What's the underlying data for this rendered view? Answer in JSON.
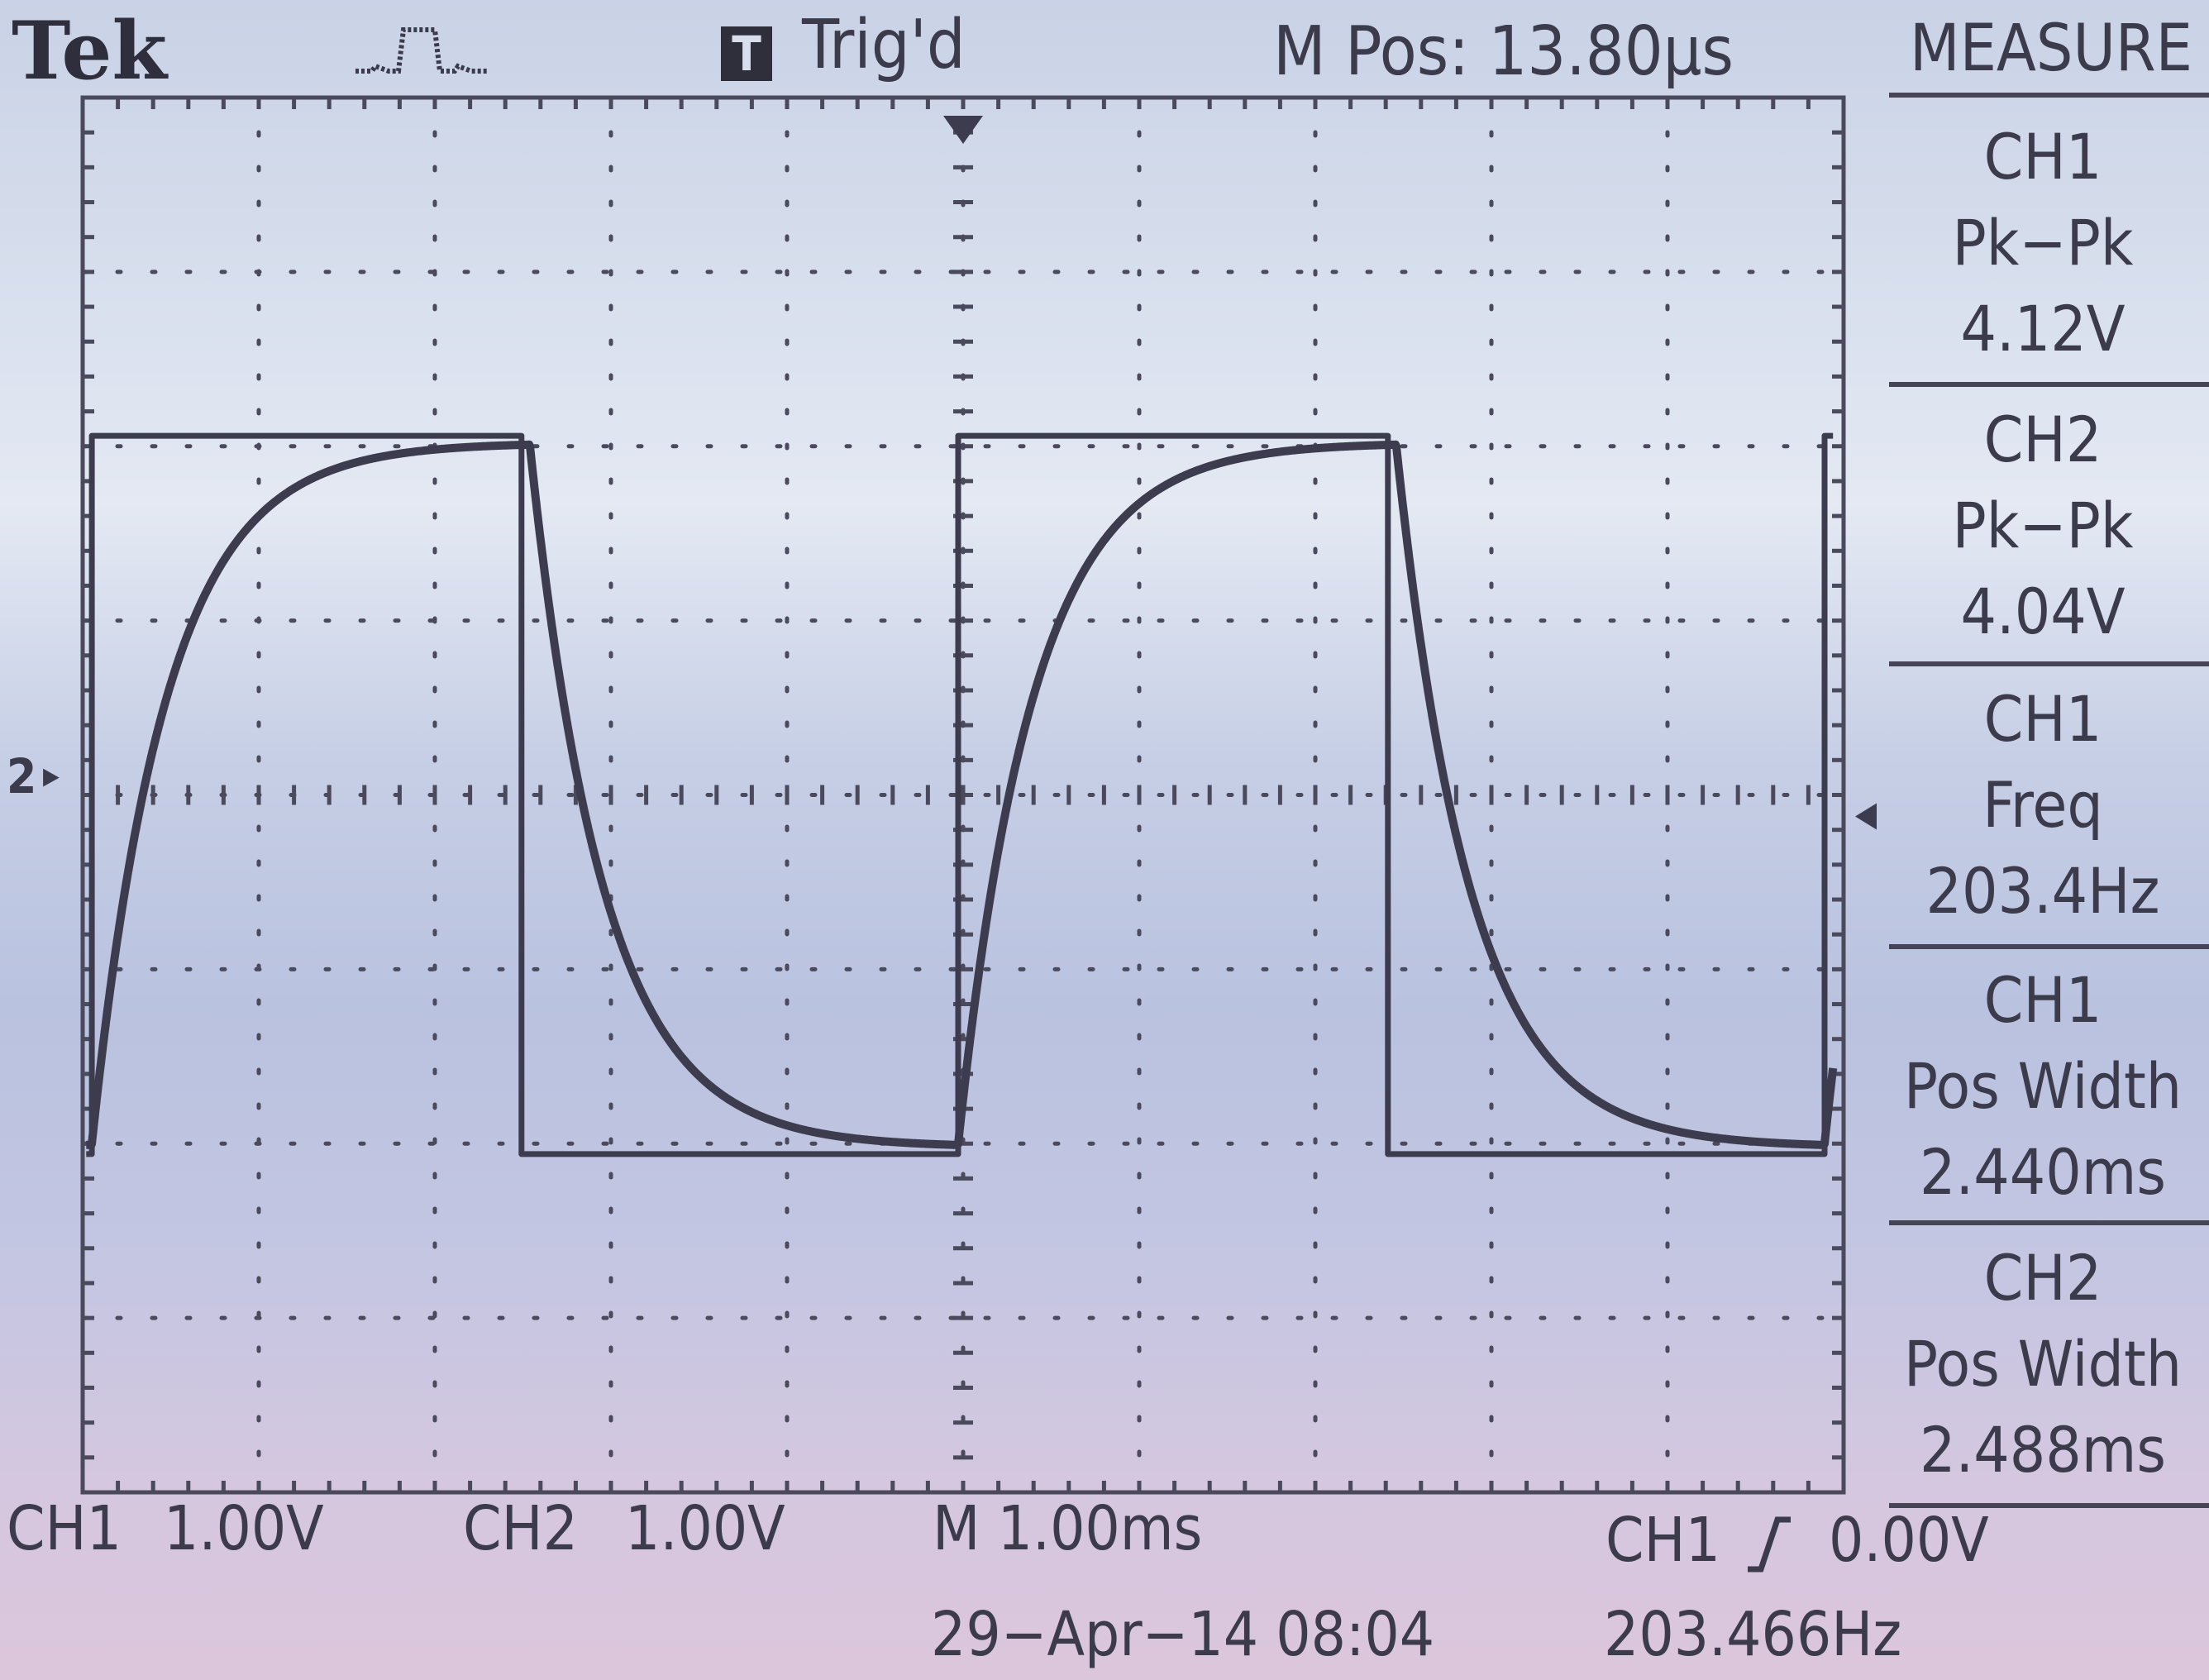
{
  "header": {
    "brand": "Tek",
    "trigger_mode_icon": "T",
    "trigger_status": "Trig'd",
    "position_readout": "M Pos: 13.80µs",
    "menu_title": "MEASURE"
  },
  "measurements": [
    {
      "channel": "CH1",
      "type": "Pk−Pk",
      "value": "4.12V"
    },
    {
      "channel": "CH2",
      "type": "Pk−Pk",
      "value": "4.04V"
    },
    {
      "channel": "CH1",
      "type": "Freq",
      "value": "203.4Hz"
    },
    {
      "channel": "CH1",
      "type": "Pos Width",
      "value": "2.440ms"
    },
    {
      "channel": "CH2",
      "type": "Pos Width",
      "value": "2.488ms"
    }
  ],
  "footer": {
    "ch1_label": "CH1",
    "ch1_scale": "1.00V",
    "ch2_label": "CH2",
    "ch2_scale": "1.00V",
    "timebase": "M 1.00ms",
    "trigger_source": "CH1",
    "trigger_level": "0.00V",
    "date_time": "29−Apr−14 08:04",
    "trigger_frequency": "203.466Hz"
  },
  "channel2_marker": "2",
  "colors": {
    "trace": "#3c3c4e",
    "grid": "#4a4a5c"
  },
  "chart_data": {
    "type": "line",
    "title": "",
    "xlabel": "",
    "ylabel": "",
    "x_divisions": 10,
    "y_divisions": 8,
    "xlim": [
      -5,
      5
    ],
    "ylim": [
      -4,
      4
    ],
    "series": [
      {
        "channel": "CH1",
        "shape": "square",
        "amplitude_div": 4.12,
        "period_div": 4.92,
        "pos_width_div": 2.44,
        "phase_start_div": -4.95,
        "offset_div": 0.0
      },
      {
        "channel": "CH2",
        "shape": "rc_response",
        "amplitude_div": 4.04,
        "tau_div": 0.42,
        "period_div": 4.92,
        "pos_width_div": 2.488,
        "phase_start_div": -4.95,
        "offset_div": 0.0
      }
    ]
  }
}
